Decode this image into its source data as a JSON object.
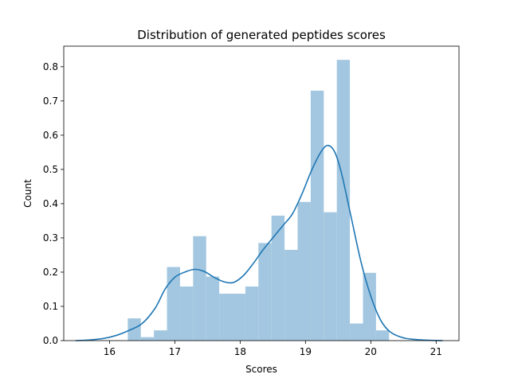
{
  "chart_data": {
    "type": "bar",
    "title": "Distribution of generated peptides scores",
    "xlabel": "Scores",
    "ylabel": "Count",
    "xlim": [
      15.3,
      21.35
    ],
    "ylim": [
      0,
      0.86
    ],
    "grid": false,
    "xticks": [
      16,
      17,
      18,
      19,
      20,
      21
    ],
    "yticks": [
      0.0,
      0.1,
      0.2,
      0.3,
      0.4,
      0.5,
      0.6,
      0.7,
      0.8
    ],
    "bar_color": "#a3c7e0",
    "line_color": "#1f77b4",
    "histogram": {
      "bin_edges": [
        16.28,
        16.48,
        16.68,
        16.88,
        17.08,
        17.28,
        17.48,
        17.68,
        17.88,
        18.08,
        18.28,
        18.48,
        18.68,
        18.88,
        19.08,
        19.28,
        19.48,
        19.68,
        19.88,
        20.08,
        20.28
      ],
      "values": [
        0.065,
        0.01,
        0.03,
        0.215,
        0.158,
        0.305,
        0.187,
        0.137,
        0.137,
        0.158,
        0.285,
        0.365,
        0.265,
        0.405,
        0.73,
        0.375,
        0.82,
        0.05,
        0.198,
        0.03
      ]
    },
    "kde": {
      "x": [
        15.48,
        15.7,
        15.9,
        16.1,
        16.3,
        16.5,
        16.7,
        16.85,
        17.0,
        17.15,
        17.3,
        17.45,
        17.6,
        17.75,
        17.9,
        18.05,
        18.2,
        18.35,
        18.5,
        18.65,
        18.8,
        18.95,
        19.1,
        19.25,
        19.35,
        19.45,
        19.55,
        19.7,
        19.85,
        20.0,
        20.15,
        20.3,
        20.5,
        20.7,
        20.9,
        21.1
      ],
      "y": [
        0.0,
        0.002,
        0.006,
        0.015,
        0.03,
        0.05,
        0.095,
        0.15,
        0.185,
        0.2,
        0.208,
        0.202,
        0.185,
        0.172,
        0.17,
        0.19,
        0.225,
        0.265,
        0.3,
        0.335,
        0.37,
        0.43,
        0.5,
        0.555,
        0.57,
        0.55,
        0.49,
        0.36,
        0.23,
        0.13,
        0.06,
        0.025,
        0.008,
        0.003,
        0.001,
        0.0
      ]
    }
  }
}
